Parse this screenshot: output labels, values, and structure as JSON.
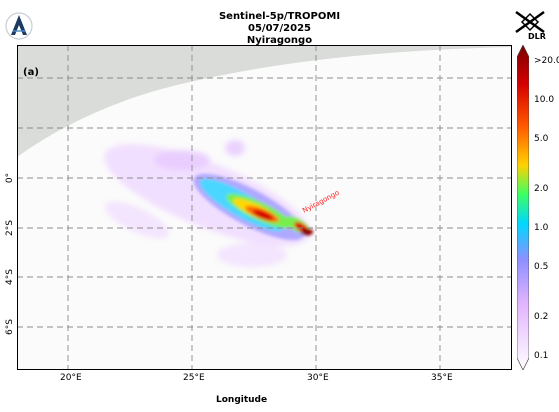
{
  "header": {
    "line1": "Sentinel-5p/TROPOMI",
    "line2": "05/07/2025",
    "line3": "Nyiragongo"
  },
  "logos": {
    "left": "lightning-logo",
    "right_text": "DLR"
  },
  "map": {
    "panel_label": "(a)",
    "volcano_label": "Nyiragongo",
    "x_axis_title": "Longitude",
    "x_ticks": [
      "20°E",
      "25°E",
      "30°E",
      "35°E"
    ],
    "y_ticks": [
      "0°",
      "2°S",
      "4°S",
      "6°S"
    ],
    "land_color": "#d9dcd8",
    "grid_style": "dashed"
  },
  "colorbar": {
    "ticks": [
      ">20.0",
      "10.0",
      "5.0",
      "2.0",
      "1.0",
      "0.5",
      "0.2",
      "0.1"
    ],
    "colors": [
      "#7a0000",
      "#d40000",
      "#ff5a00",
      "#ffd200",
      "#3cff64",
      "#00d7ff",
      "#8f8fff",
      "#e3b6ff",
      "#ffffff"
    ]
  },
  "chart_data": {
    "type": "heatmap",
    "title": "Sentinel-5p/TROPOMI 05/07/2025 Nyiragongo",
    "xlabel": "Longitude",
    "ylabel": "",
    "xlim": [
      18.0,
      38.0
    ],
    "ylim": [
      -7.7,
      5.5
    ],
    "scale": "log",
    "colorbar_range": [
      0.1,
      20.0
    ],
    "plume_core_lon_lat": [
      [
        26.7,
        -1.4
      ],
      [
        28.0,
        -1.7
      ],
      [
        29.3,
        -2.2
      ],
      [
        29.7,
        -2.6
      ]
    ],
    "volcano": {
      "name": "Nyiragongo",
      "lon": 29.2,
      "lat": -1.5
    }
  }
}
